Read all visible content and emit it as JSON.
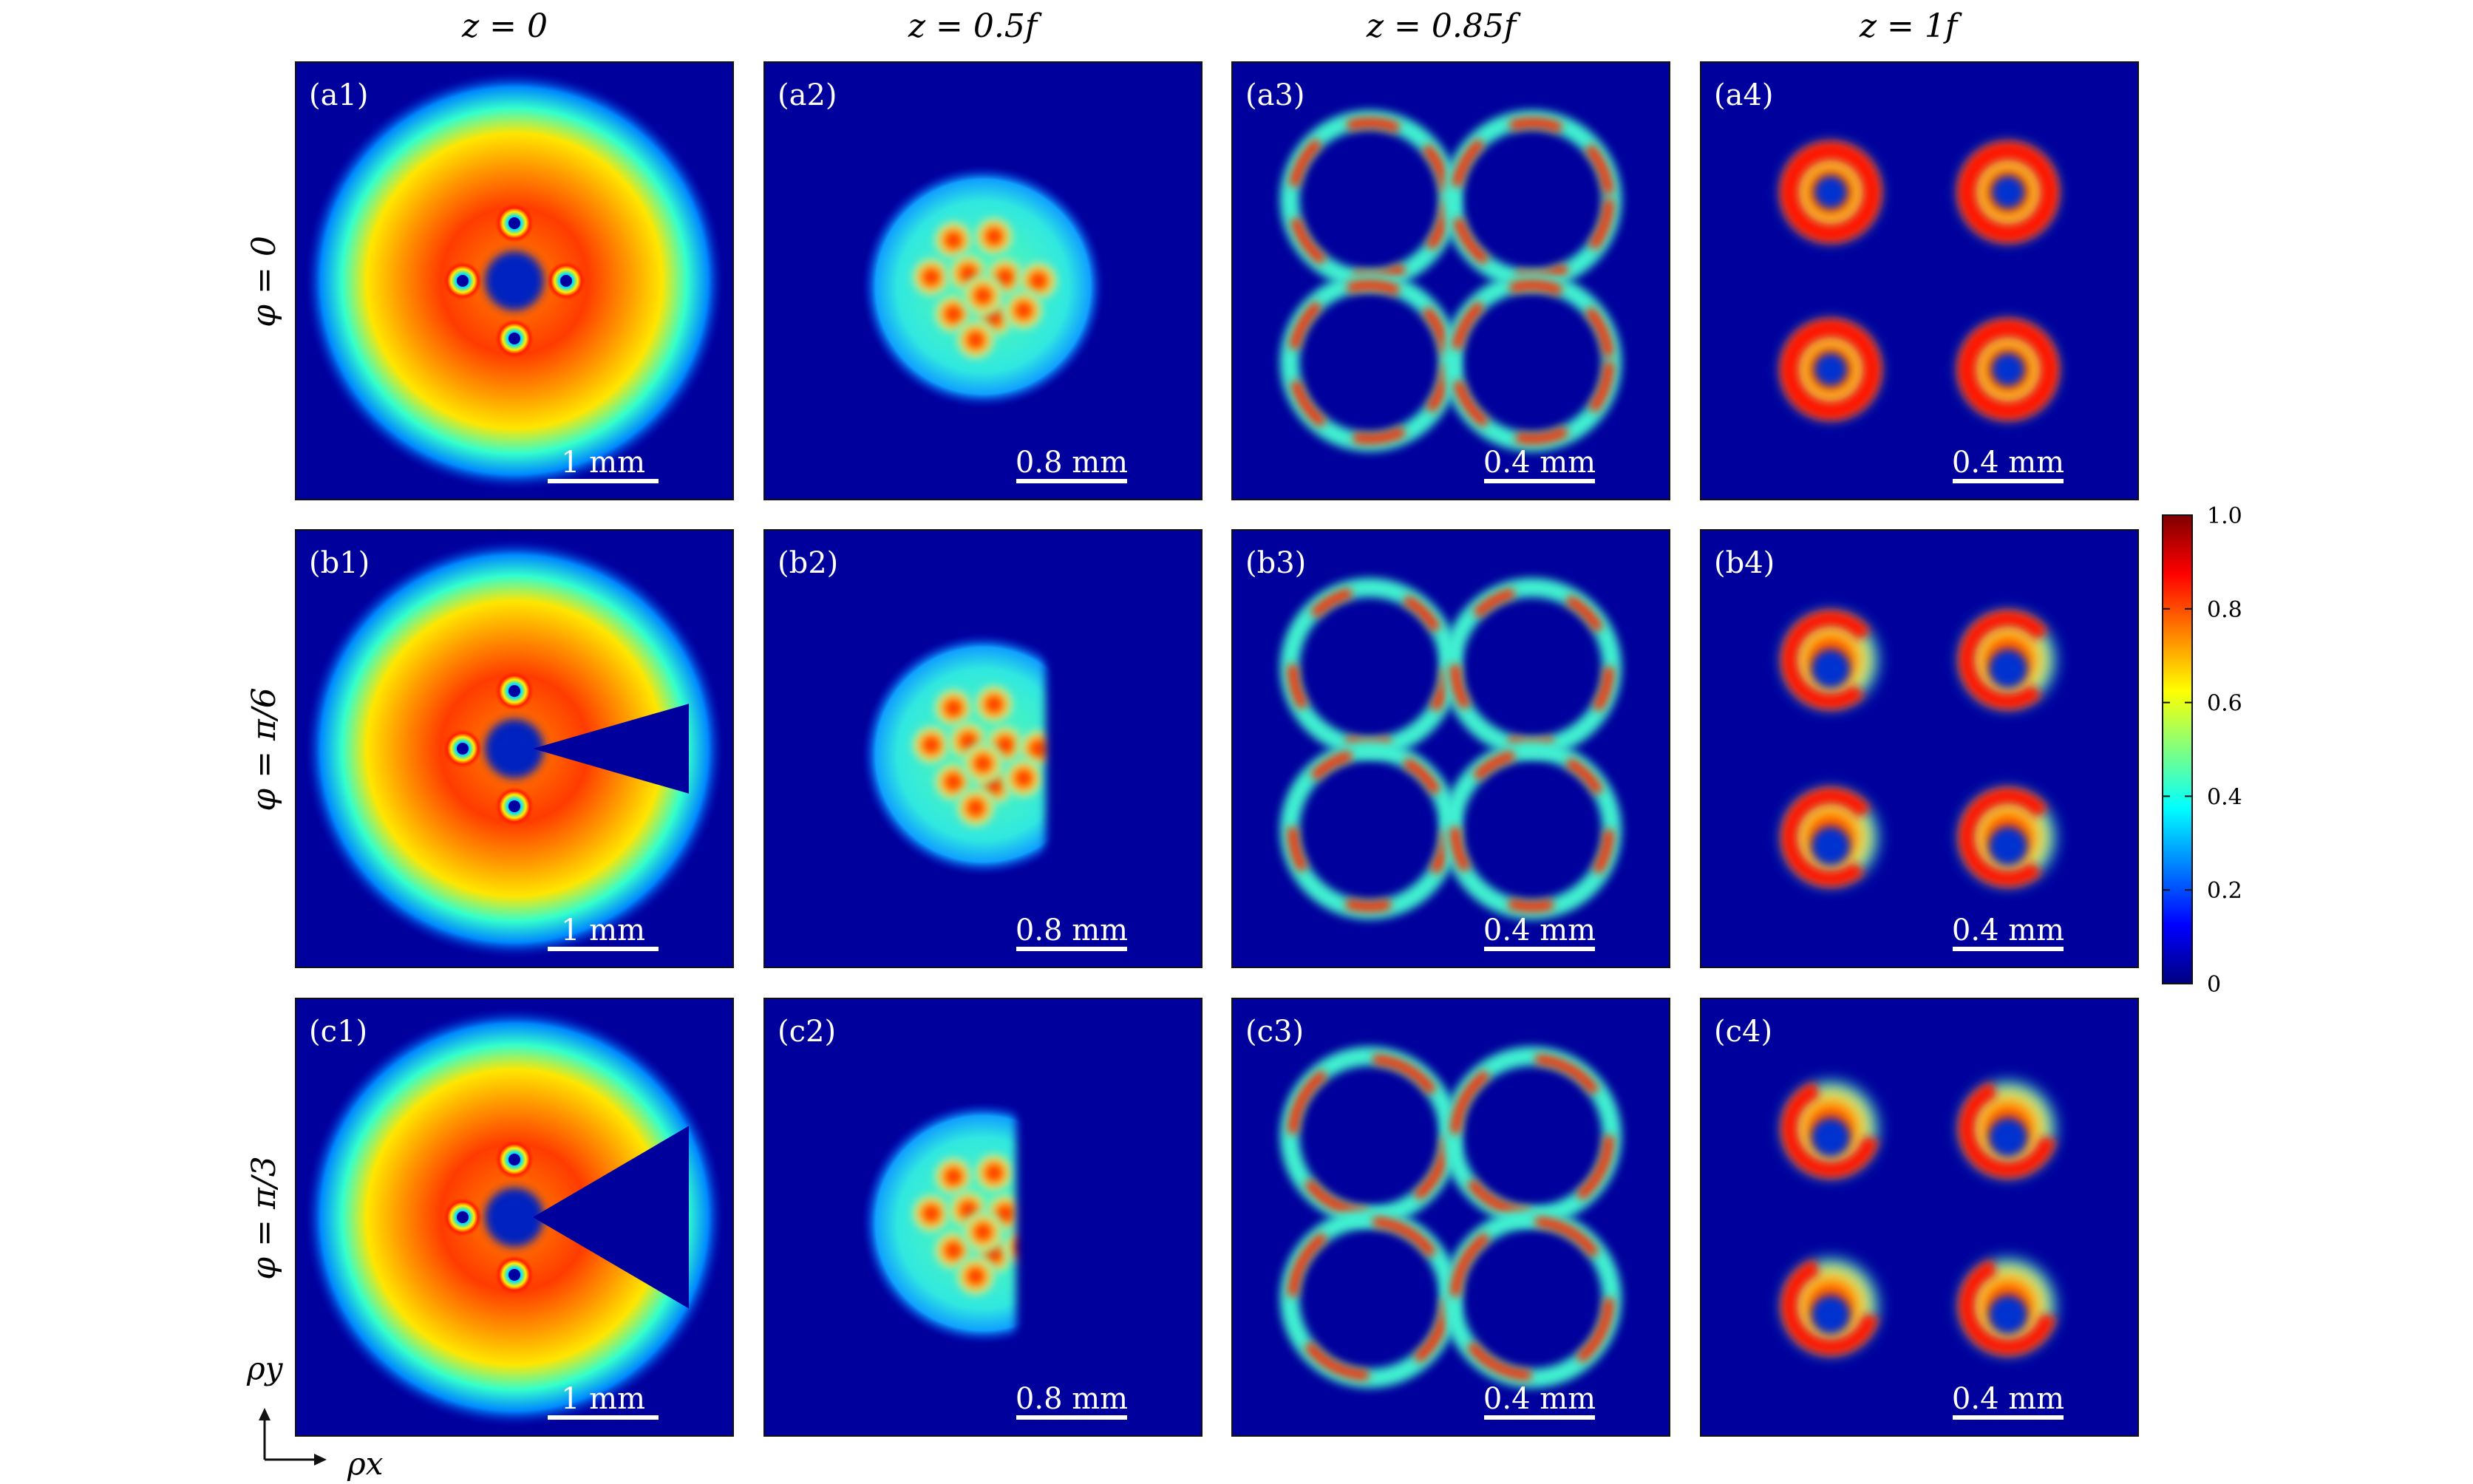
{
  "columns": [
    {
      "label": "z = 0"
    },
    {
      "label": "z = 0.5f"
    },
    {
      "label": "z = 0.85f"
    },
    {
      "label": "z = 1f"
    }
  ],
  "rows": [
    {
      "label": "φ = 0"
    },
    {
      "label": "φ = π/6"
    },
    {
      "label": "φ = π/3"
    }
  ],
  "panels": [
    [
      {
        "tag": "(a1)",
        "scale": "1 mm"
      },
      {
        "tag": "(a2)",
        "scale": "0.8 mm"
      },
      {
        "tag": "(a3)",
        "scale": "0.4 mm"
      },
      {
        "tag": "(a4)",
        "scale": "0.4 mm"
      }
    ],
    [
      {
        "tag": "(b1)",
        "scale": "1 mm"
      },
      {
        "tag": "(b2)",
        "scale": "0.8 mm"
      },
      {
        "tag": "(b3)",
        "scale": "0.4 mm"
      },
      {
        "tag": "(b4)",
        "scale": "0.4 mm"
      }
    ],
    [
      {
        "tag": "(c1)",
        "scale": "1 mm"
      },
      {
        "tag": "(c2)",
        "scale": "0.8 mm"
      },
      {
        "tag": "(c3)",
        "scale": "0.4 mm"
      },
      {
        "tag": "(c4)",
        "scale": "0.4 mm"
      }
    ]
  ],
  "colorbar": {
    "ticks": [
      "0",
      "0.2",
      "0.4",
      "0.6",
      "0.8",
      "1.0"
    ],
    "colors": [
      "#00007f",
      "#0000ff",
      "#0080ff",
      "#00ffff",
      "#80ff80",
      "#ffff00",
      "#ff8000",
      "#ff0000",
      "#7f0000"
    ]
  },
  "axes": {
    "x": "ρx",
    "y": "ρy"
  },
  "background_color": "#00009c"
}
